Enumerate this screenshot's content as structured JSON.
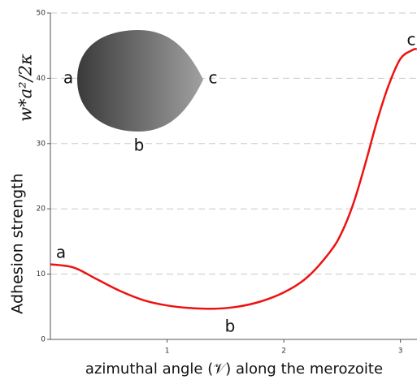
{
  "chart_data": {
    "type": "line",
    "xlabel": "azimuthal angle (𝒱) along the merozoite",
    "ylabel": "Adhesion strength",
    "ylabel_formula": "w*a²/2κ",
    "x": [
      0,
      0.2,
      0.4,
      0.6,
      0.8,
      1.0,
      1.2,
      1.4,
      1.6,
      1.8,
      2.0,
      2.2,
      2.4,
      2.5,
      2.6,
      2.7,
      2.8,
      2.9,
      3.0,
      3.1,
      3.14
    ],
    "values": [
      11.5,
      11.0,
      9.2,
      7.4,
      6.0,
      5.2,
      4.8,
      4.7,
      5.0,
      5.8,
      7.2,
      9.5,
      13.5,
      16.5,
      21,
      27,
      33.5,
      39,
      43,
      44.3,
      44.5
    ],
    "color": "#ee1111",
    "xlim": [
      0,
      3.1416
    ],
    "ylim": [
      0,
      50
    ],
    "xticks": [
      1,
      2,
      3
    ],
    "yticks": [
      0,
      10,
      20,
      30,
      40,
      50
    ],
    "grid": true,
    "annotations": [
      "a",
      "b",
      "c"
    ],
    "inset_labels": [
      "a",
      "b",
      "c"
    ]
  }
}
